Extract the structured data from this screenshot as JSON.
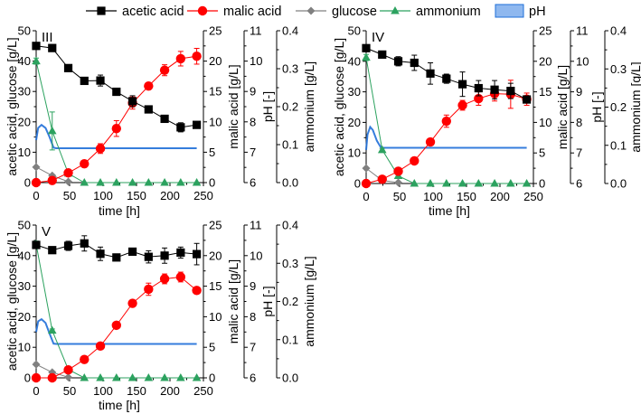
{
  "chart_data": {
    "type": "line",
    "legend": [
      {
        "key": "acetic",
        "label": "acetic acid",
        "color": "#000000",
        "marker": "square"
      },
      {
        "key": "malic",
        "label": "malic acid",
        "color": "#ff0000",
        "marker": "circle"
      },
      {
        "key": "glucose",
        "label": "glucose",
        "color": "#808080",
        "marker": "diamond"
      },
      {
        "key": "ammonium",
        "label": "ammonium",
        "color": "#2ca25f",
        "marker": "triangle"
      },
      {
        "key": "pH",
        "label": "pH",
        "color": "#1f6fd8",
        "marker": "band"
      }
    ],
    "xlabel": "time [h]",
    "xlim": [
      0,
      250
    ],
    "xticks": [
      0,
      50,
      100,
      150,
      200,
      250
    ],
    "axes": {
      "left": {
        "label": "acetic acid, glucose [g/L]",
        "range": [
          0,
          50
        ],
        "ticks": [
          "0",
          "10",
          "20",
          "30",
          "40",
          "50"
        ]
      },
      "malic": {
        "label": "malic acid [g/L]",
        "range": [
          0,
          25
        ],
        "ticks": [
          "0",
          "5",
          "10",
          "15",
          "20",
          "25"
        ]
      },
      "pH": {
        "label": "pH [-]",
        "range": [
          6,
          11
        ],
        "ticks": [
          "6",
          "7",
          "8",
          "9",
          "10",
          "11"
        ]
      },
      "ammonium": {
        "label": "ammonium [g/L]",
        "range": [
          0,
          0.4
        ],
        "ticks": [
          "0.0",
          "0.1",
          "0.2",
          "0.3",
          "0.4"
        ]
      }
    },
    "panels": [
      {
        "label": "III",
        "time": [
          0,
          24,
          48,
          72,
          96,
          120,
          144,
          168,
          192,
          216,
          240
        ],
        "acetic": {
          "values": [
            45,
            44.3,
            37.7,
            33.5,
            33.6,
            29.9,
            26.8,
            24.1,
            21,
            18.2,
            19
          ],
          "err": [
            0.5,
            0.5,
            0.5,
            0.8,
            1.8,
            0.5,
            1.8,
            0.5,
            0.8,
            1.5,
            0.5
          ]
        },
        "malic": {
          "values": [
            0,
            0.35,
            1.6,
            3.1,
            5.6,
            8.9,
            13.1,
            15.9,
            18.5,
            20.4,
            20.8
          ],
          "err": [
            0.1,
            0.2,
            0.3,
            0.3,
            0.8,
            1.3,
            1.0,
            0.3,
            0.9,
            1.2,
            1.3
          ]
        },
        "glucose": {
          "time": [
            0,
            24,
            48
          ],
          "values": [
            5.1,
            2.3,
            0.3
          ]
        },
        "ammonium": {
          "values": [
            0.32,
            0.136,
            0.024,
            0,
            0,
            0,
            0,
            0,
            0,
            0,
            0
          ],
          "err": [
            0.008,
            0.05,
            0.004,
            0,
            0,
            0,
            0,
            0,
            0,
            0,
            0
          ]
        },
        "pH": [
          [
            0,
            7.4
          ],
          [
            3,
            7.8
          ],
          [
            8,
            7.9
          ],
          [
            14,
            7.8
          ],
          [
            20,
            7.5
          ],
          [
            26,
            7.15
          ],
          [
            30,
            7.13
          ],
          [
            240,
            7.13
          ]
        ]
      },
      {
        "label": "IV",
        "time": [
          0,
          24,
          48,
          72,
          96,
          120,
          144,
          168,
          192,
          216,
          240
        ],
        "acetic": {
          "values": [
            44.3,
            42.2,
            40,
            39.5,
            36,
            34.3,
            32.5,
            31.2,
            30.7,
            30.3,
            27.5
          ],
          "err": [
            0.5,
            0.5,
            1.5,
            2.5,
            3.5,
            1.5,
            4,
            2.5,
            3,
            2.5,
            1
          ]
        },
        "malic": {
          "values": [
            0,
            0.7,
            2,
            3.7,
            6.8,
            10.2,
            12.8,
            13.9,
            14.7,
            14.6,
            13.8
          ],
          "err": [
            0.1,
            0.2,
            0.2,
            0.3,
            0.5,
            1,
            0.8,
            1.1,
            1.2,
            2.3,
            1
          ]
        },
        "glucose": {
          "time": [
            0,
            24,
            48
          ],
          "values": [
            5,
            1,
            0.3
          ]
        },
        "ammonium": {
          "values": [
            0.33,
            0.088,
            0.02,
            0,
            0,
            0,
            0,
            0,
            0,
            0,
            0
          ],
          "err": [
            0.008,
            0.004,
            0.004,
            0,
            0,
            0,
            0,
            0,
            0,
            0,
            0
          ]
        },
        "pH": [
          [
            0,
            7.1
          ],
          [
            2,
            7.6
          ],
          [
            6,
            7.85
          ],
          [
            10,
            7.75
          ],
          [
            16,
            7.4
          ],
          [
            22,
            7.18
          ],
          [
            26,
            7.17
          ],
          [
            240,
            7.17
          ]
        ]
      },
      {
        "label": "V",
        "time": [
          0,
          24,
          48,
          72,
          96,
          120,
          144,
          168,
          192,
          216,
          240
        ],
        "acetic": {
          "values": [
            43.5,
            41.8,
            43.2,
            44,
            40.6,
            39.4,
            41.3,
            39.6,
            40,
            41,
            40.5
          ],
          "err": [
            0.5,
            0.8,
            1.5,
            2.5,
            2.2,
            0.5,
            0.5,
            2,
            2.5,
            1.8,
            3.5
          ]
        },
        "malic": {
          "values": [
            0,
            0,
            1.3,
            3,
            5.2,
            8.6,
            12.2,
            14.5,
            16.2,
            16.5,
            14.3
          ],
          "err": [
            0.1,
            0.1,
            0.2,
            0.2,
            0.3,
            0.3,
            0.3,
            1,
            0.8,
            0.8,
            0.5
          ]
        },
        "glucose": {
          "time": [
            0,
            24,
            48
          ],
          "values": [
            4.4,
            1.8,
            0.2
          ]
        },
        "ammonium": {
          "values": [
            0.35,
            0.124,
            0.022,
            0,
            0,
            0,
            0,
            0,
            0,
            0,
            0
          ],
          "err": [
            0.008,
            0.004,
            0.004,
            0,
            0,
            0,
            0,
            0,
            0,
            0,
            0
          ]
        },
        "pH": [
          [
            0,
            7.5
          ],
          [
            3,
            7.85
          ],
          [
            8,
            7.92
          ],
          [
            14,
            7.8
          ],
          [
            20,
            7.45
          ],
          [
            26,
            7.12
          ],
          [
            30,
            7.11
          ],
          [
            240,
            7.11
          ]
        ]
      }
    ]
  }
}
